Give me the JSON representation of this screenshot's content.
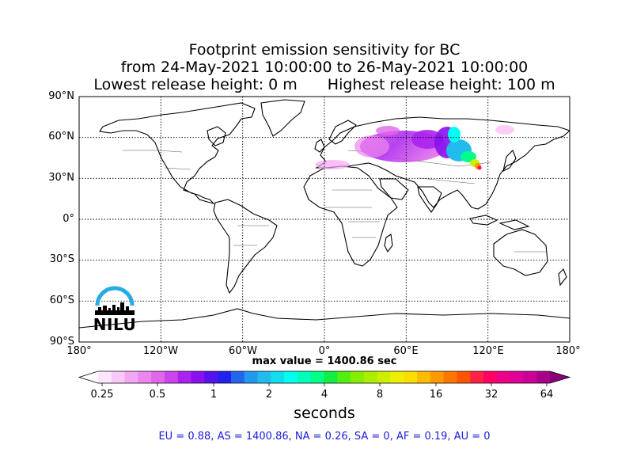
{
  "title": {
    "line1": "Footprint emission sensitivity for BC",
    "line2": "from 24-May-2021 10:00:00 to 26-May-2021 10:00:00",
    "lowest": "Lowest release height: 0 m",
    "highest": "Highest release height: 100 m"
  },
  "map": {
    "lat_labels": [
      "90°N",
      "60°N",
      "30°N",
      "0°",
      "30°S",
      "60°S",
      "90°S"
    ],
    "lon_labels": [
      "180°",
      "120°W",
      "60°W",
      "0°",
      "60°E",
      "120°E",
      "180°"
    ],
    "gridlines": "dotted",
    "plume_region": "Russia, Kazakhstan, Mongolia, northern China, Europe"
  },
  "max_value": "max value = 1400.86 sec",
  "colorbar": {
    "ticks": [
      "0.25",
      "0.5",
      "1",
      "2",
      "4",
      "8",
      "16",
      "32",
      "64"
    ],
    "units": "seconds",
    "colors": [
      "#ffffff",
      "#fde6fd",
      "#f9c8f9",
      "#f3a6f3",
      "#ec86ee",
      "#e066ea",
      "#cc44ee",
      "#aa22ee",
      "#8811ee",
      "#5511ee",
      "#2222ee",
      "#2266ee",
      "#2299ee",
      "#22bbee",
      "#11ddee",
      "#00ffee",
      "#00ffbb",
      "#00ff88",
      "#11ee44",
      "#55ee11",
      "#88ee00",
      "#aaee00",
      "#ccee00",
      "#eeee00",
      "#ffdd00",
      "#ffbb00",
      "#ff9900",
      "#ff7700",
      "#ff5500",
      "#ff2244",
      "#ff0066",
      "#ee0088",
      "#dd0099",
      "#cc0099",
      "#aa0088",
      "#880077"
    ]
  },
  "regions": "EU = 0.88,  AS = 1400.86,  NA = 0.26,  SA = 0,  AF = 0.19,  AU = 0",
  "logo": {
    "text": "NILU",
    "arc_color": "#29abe2"
  }
}
